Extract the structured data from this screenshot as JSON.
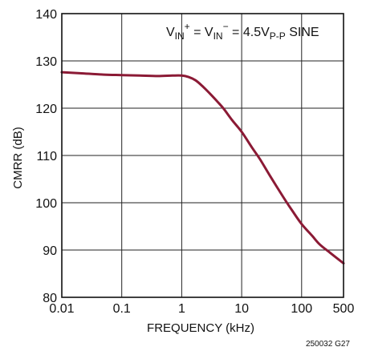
{
  "chart_data": {
    "type": "line",
    "xlabel": "FREQUENCY (kHz)",
    "ylabel": "CMRR (dB)",
    "x_scale": "log",
    "xlim": [
      0.01,
      500
    ],
    "ylim": [
      80,
      140
    ],
    "x_ticks": [
      0.01,
      0.1,
      1,
      10,
      100,
      500
    ],
    "x_tick_labels": [
      "0.01",
      "0.1",
      "1",
      "10",
      "100",
      "500"
    ],
    "y_ticks": [
      80,
      90,
      100,
      110,
      120,
      130,
      140
    ],
    "y_tick_labels": [
      "80",
      "90",
      "100",
      "110",
      "120",
      "130",
      "140"
    ],
    "grid": true,
    "annotation": {
      "v1": "V",
      "sub1": "IN",
      "sup1": "+",
      "eq1": " = V",
      "sub2": "IN",
      "sup2": "−",
      "eq2": " = 4.5V",
      "sub3": "P-P",
      "tail": " SINE"
    },
    "figure_id": "250032 G27",
    "color": "#8b1a35",
    "series": [
      {
        "x": [
          0.01,
          0.02,
          0.05,
          0.1,
          0.2,
          0.4,
          0.7,
          1.0,
          1.3,
          1.7,
          2.2,
          3,
          4,
          5,
          7,
          10,
          15,
          20,
          30,
          50,
          70,
          100,
          150,
          200,
          300,
          500
        ],
        "y": [
          127.6,
          127.4,
          127.1,
          127.0,
          126.9,
          126.8,
          126.9,
          126.9,
          126.6,
          125.9,
          124.7,
          123.0,
          121.3,
          119.9,
          117.4,
          115.0,
          111.6,
          109.3,
          105.6,
          101.1,
          98.3,
          95.5,
          93.0,
          91.2,
          89.4,
          87.2
        ]
      }
    ]
  }
}
